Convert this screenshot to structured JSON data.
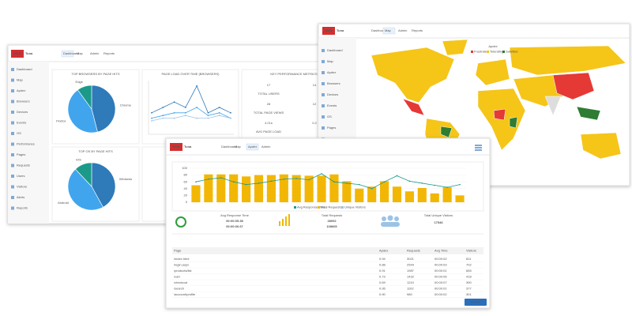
{
  "dashboard": {
    "logo": [
      "WEB",
      "Tuna"
    ],
    "nav": [
      "Dashboard",
      "Map",
      "Admin",
      "Reports"
    ],
    "sidebar": [
      "Dashboard",
      "Map",
      "Apdex",
      "Browsers",
      "Devices",
      "Events",
      "OS",
      "Performance",
      "Pages",
      "Requests",
      "Users",
      "Visitors",
      "Alerts",
      "Reports"
    ],
    "browsers": {
      "title": "TOP BROWSERS BY PAGE HITS",
      "slices": [
        {
          "label": "Chrome",
          "value": 46,
          "color": "#2f7ab9"
        },
        {
          "label": "Firefox",
          "value": 44,
          "color": "#41a5ee"
        },
        {
          "label": "Edge",
          "value": 10,
          "color": "#1b9a8a"
        }
      ]
    },
    "load": {
      "title": "PAGE LOAD OVER TIME (BROWSERS)",
      "ylim": [
        0,
        10
      ],
      "series": [
        {
          "color": "#2f7ab9",
          "values": [
            4,
            5,
            6,
            5,
            9,
            4,
            5,
            4
          ]
        },
        {
          "color": "#41a5ee",
          "values": [
            3,
            3.5,
            4,
            4,
            5,
            3.5,
            4,
            3
          ]
        },
        {
          "color": "#9fc6e8",
          "values": [
            2.5,
            3,
            3,
            3.5,
            3,
            3,
            3.5,
            3
          ]
        }
      ]
    },
    "kpi": {
      "title": "KEY PERFORMANCE METRICS",
      "items": [
        {
          "value": 17,
          "label": "TOTAL USERS"
        },
        {
          "value": 28,
          "label": "TOTAL PAGE VIEWS"
        },
        {
          "value": "4.21s",
          "label": "AVG PAGE LOAD"
        }
      ],
      "column2": [
        14,
        12,
        "0.2"
      ]
    },
    "os": {
      "title": "TOP OS BY PAGE HITS",
      "slices": [
        {
          "label": "Windows",
          "value": 42,
          "color": "#2f7ab9"
        },
        {
          "label": "Android",
          "value": 46,
          "color": "#41a5ee"
        },
        {
          "label": "iOS",
          "value": 12,
          "color": "#1b9a8a"
        }
      ]
    }
  },
  "map": {
    "logo": [
      "WEB",
      "Tuna"
    ],
    "nav": [
      "Dashboard",
      "Map",
      "Admin",
      "Reports"
    ],
    "sidebar": [
      "Dashboard",
      "Map",
      "Apdex",
      "Browsers",
      "Devices",
      "Events",
      "OS",
      "Pages",
      "Users",
      "Alerts"
    ],
    "legend_title": "Apdex",
    "legend": [
      {
        "name": "Frustrated",
        "color": "#e53935"
      },
      {
        "name": "Tolerating",
        "color": "#f5c518"
      },
      {
        "name": "Satisfied",
        "color": "#2e7d32"
      }
    ]
  },
  "requests": {
    "logo": [
      "WEB",
      "Tuna"
    ],
    "nav": [
      "Dashboard",
      "Map",
      "Apdex",
      "Admin"
    ],
    "chart": {
      "ylim": [
        0,
        100
      ],
      "yticks": [
        0,
        20,
        40,
        60,
        80,
        100
      ],
      "bar_color": "#f2b705",
      "line_color": "#1b9a8a",
      "bars": [
        50,
        82,
        82,
        82,
        76,
        80,
        80,
        82,
        80,
        78,
        78,
        82,
        62,
        40,
        46,
        62,
        46,
        32,
        42,
        26,
        44,
        20
      ],
      "line": [
        60,
        68,
        72,
        60,
        52,
        56,
        62,
        68,
        70,
        66,
        84,
        60,
        56,
        52,
        40,
        60,
        78,
        62,
        56,
        50,
        44,
        52
      ],
      "legend": [
        "Avg Response Time",
        "Total Requests",
        "Unique Visitors"
      ]
    },
    "stats": [
      {
        "title": "Avg Response Time",
        "values": [
          "00:00:05.38",
          "00:00:00.67"
        ]
      },
      {
        "title": "Total Requests",
        "values": [
          "28092",
          "108665"
        ]
      },
      {
        "title": "Total Unique Visitors",
        "values": [
          "17546"
        ]
      }
    ],
    "table": {
      "headers": [
        "Page",
        "Apdex",
        "Requests",
        "Avg Time",
        "Visitors"
      ],
      "rows": [
        [
          "/index.html",
          "0.94",
          "3021",
          "00:00:02",
          "811"
        ],
        [
          "/login.aspx",
          "0.88",
          "2544",
          "00:00:03",
          "702"
        ],
        [
          "/products/list",
          "0.91",
          "1987",
          "00:00:01",
          "655"
        ],
        [
          "/cart",
          "0.73",
          "1432",
          "00:00:06",
          "418"
        ],
        [
          "/checkout",
          "0.69",
          "1210",
          "00:00:07",
          "390"
        ],
        [
          "/search",
          "0.95",
          "1102",
          "00:00:01",
          "377"
        ],
        [
          "/account/profile",
          "0.90",
          "980",
          "00:00:02",
          "301"
        ]
      ]
    },
    "button": "Export"
  }
}
